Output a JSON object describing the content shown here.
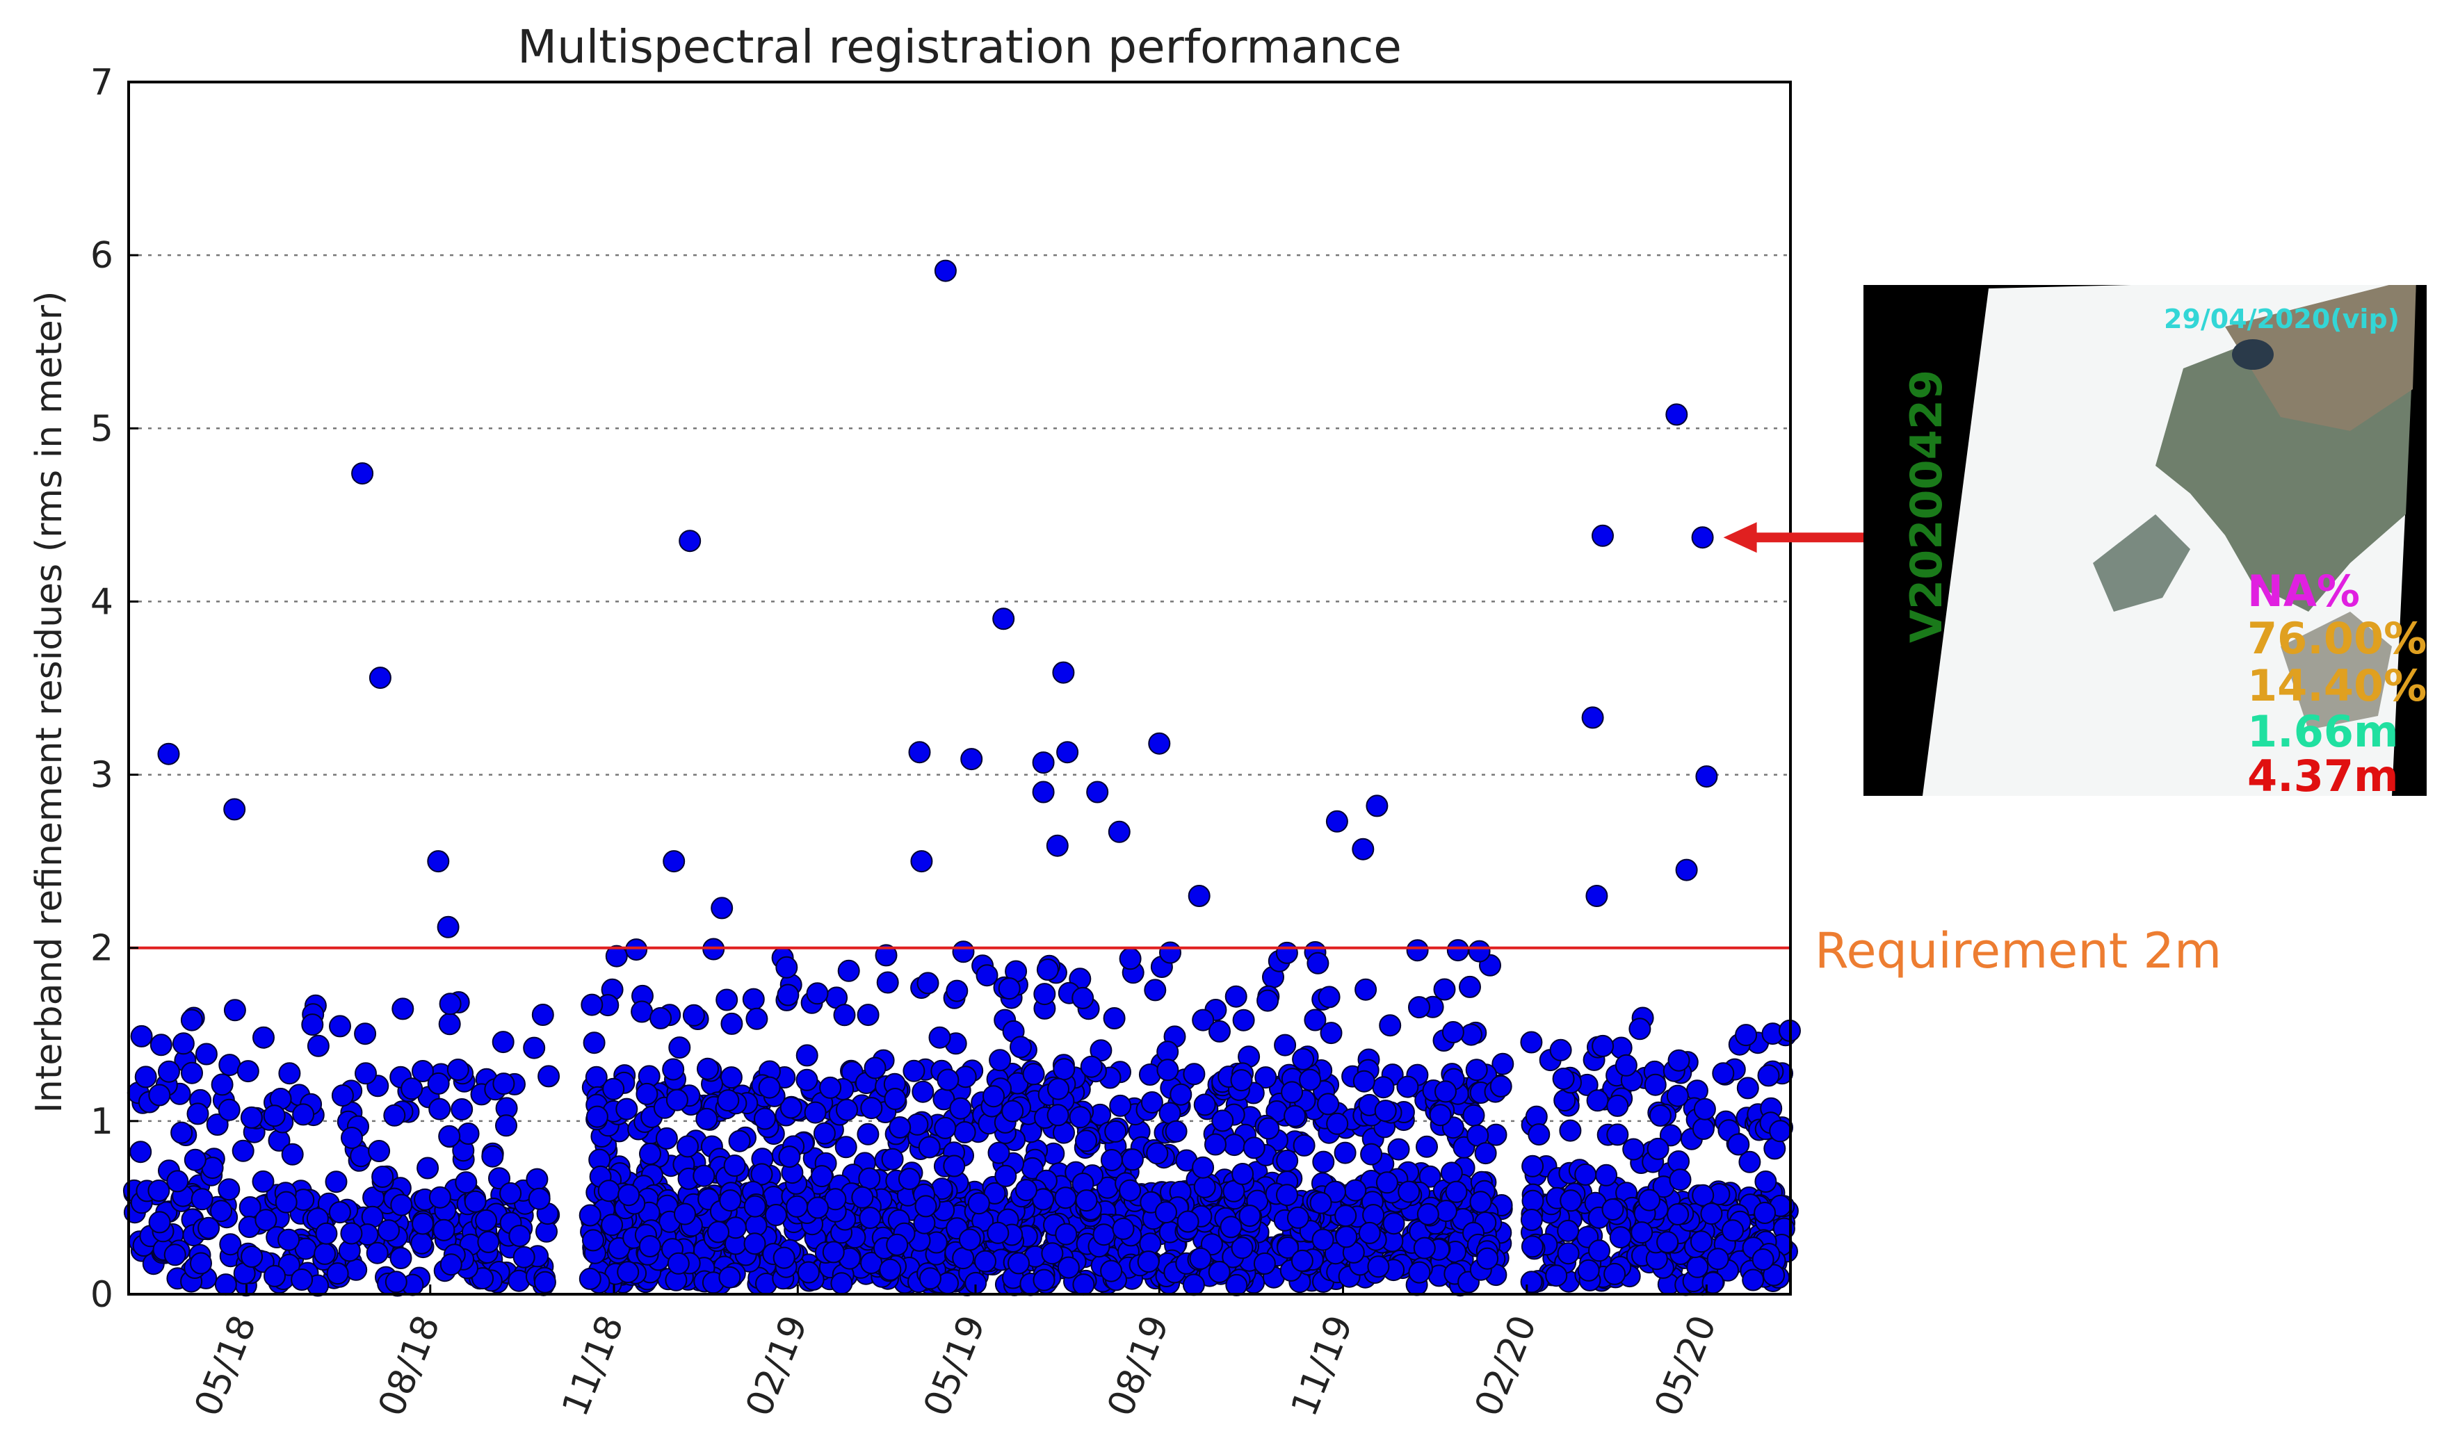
{
  "chart_data": {
    "type": "scatter",
    "title": "Multispectral registration performance",
    "ylabel": "Interband refinement residues (rms in meter)",
    "xlabel": "",
    "ylim": [
      0,
      7
    ],
    "y_ticks": [
      0,
      1,
      2,
      3,
      4,
      5,
      6,
      7
    ],
    "xlim": [
      "2018-03-03",
      "2020-06-12"
    ],
    "x_ticks": [
      {
        "date": "2018-05-01",
        "label": "05/18"
      },
      {
        "date": "2018-08-01",
        "label": "08/18"
      },
      {
        "date": "2018-11-01",
        "label": "11/18"
      },
      {
        "date": "2019-02-01",
        "label": "02/19"
      },
      {
        "date": "2019-05-01",
        "label": "05/19"
      },
      {
        "date": "2019-08-01",
        "label": "08/19"
      },
      {
        "date": "2019-11-01",
        "label": "11/19"
      },
      {
        "date": "2020-02-01",
        "label": "02/20"
      },
      {
        "date": "2020-05-01",
        "label": "05/20"
      }
    ],
    "grid": "y-dotted",
    "marker_color": "#0000EE",
    "threshold": {
      "value": 2,
      "color": "#E02020",
      "label": "Requirement 2m",
      "label_color": "#ED7D31"
    },
    "highlight_arrow_color": "#E02020",
    "outliers": [
      {
        "date": "2018-03-23",
        "value": 3.12
      },
      {
        "date": "2018-04-25",
        "value": 2.8
      },
      {
        "date": "2018-06-28",
        "value": 4.74
      },
      {
        "date": "2018-07-07",
        "value": 3.56
      },
      {
        "date": "2018-08-05",
        "value": 2.5
      },
      {
        "date": "2018-08-10",
        "value": 2.12
      },
      {
        "date": "2018-12-09",
        "value": 4.35
      },
      {
        "date": "2018-12-01",
        "value": 2.5
      },
      {
        "date": "2018-12-25",
        "value": 2.23
      },
      {
        "date": "2019-04-03",
        "value": 3.13
      },
      {
        "date": "2019-04-04",
        "value": 2.5
      },
      {
        "date": "2019-04-16",
        "value": 5.91
      },
      {
        "date": "2019-04-29",
        "value": 3.09
      },
      {
        "date": "2019-05-15",
        "value": 3.9
      },
      {
        "date": "2019-06-04",
        "value": 3.07
      },
      {
        "date": "2019-06-04",
        "value": 2.9
      },
      {
        "date": "2019-06-11",
        "value": 2.59
      },
      {
        "date": "2019-06-14",
        "value": 3.59
      },
      {
        "date": "2019-06-16",
        "value": 3.13
      },
      {
        "date": "2019-07-01",
        "value": 2.9
      },
      {
        "date": "2019-07-12",
        "value": 2.67
      },
      {
        "date": "2019-08-01",
        "value": 3.18
      },
      {
        "date": "2019-08-21",
        "value": 2.3
      },
      {
        "date": "2019-10-29",
        "value": 2.73
      },
      {
        "date": "2019-11-11",
        "value": 2.57
      },
      {
        "date": "2019-11-18",
        "value": 2.82
      },
      {
        "date": "2020-03-05",
        "value": 3.33
      },
      {
        "date": "2020-03-07",
        "value": 2.3
      },
      {
        "date": "2020-03-10",
        "value": 4.38
      },
      {
        "date": "2020-04-16",
        "value": 5.08
      },
      {
        "date": "2020-04-21",
        "value": 2.45
      },
      {
        "date": "2020-04-29",
        "value": 4.37
      },
      {
        "date": "2020-05-01",
        "value": 2.99
      }
    ],
    "bulk_clusters": [
      {
        "start": "2018-03-05",
        "end": "2018-09-30",
        "count": 360,
        "typical_max": 1.7
      },
      {
        "start": "2018-10-20",
        "end": "2020-01-20",
        "count": 1700,
        "typical_max": 2.0
      },
      {
        "start": "2020-02-03",
        "end": "2020-06-12",
        "count": 340,
        "typical_max": 1.6
      }
    ]
  },
  "inset": {
    "date": "29/04/2020(vip)",
    "id": "V20200429",
    "na": "NA%",
    "pct1": "76.00%",
    "pct2": "14.40%",
    "m1": "1.66m",
    "m2": "4.37m"
  }
}
